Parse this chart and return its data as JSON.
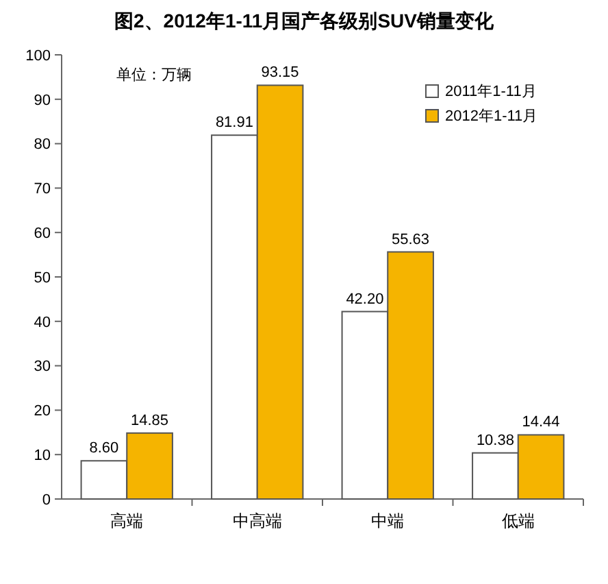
{
  "chart_data": {
    "type": "bar",
    "title": "图2、2012年1-11月国产各级别SUV销量变化",
    "annotations": [
      "单位：万辆"
    ],
    "categories": [
      "高端",
      "中高端",
      "中端",
      "低端"
    ],
    "series": [
      {
        "name": "2011年1-11月",
        "color": "#ffffff",
        "values": [
          8.6,
          81.91,
          42.2,
          10.38
        ],
        "value_labels": [
          "8.60",
          "81.91",
          "42.20",
          "10.38"
        ]
      },
      {
        "name": "2012年1-11月",
        "color": "#f5b400",
        "values": [
          14.85,
          93.15,
          55.63,
          14.44
        ],
        "value_labels": [
          "14.85",
          "93.15",
          "55.63",
          "14.44"
        ]
      }
    ],
    "ylim": [
      0,
      100
    ],
    "yticks": [
      0,
      10,
      20,
      30,
      40,
      50,
      60,
      70,
      80,
      90,
      100
    ],
    "legend": "top right"
  }
}
